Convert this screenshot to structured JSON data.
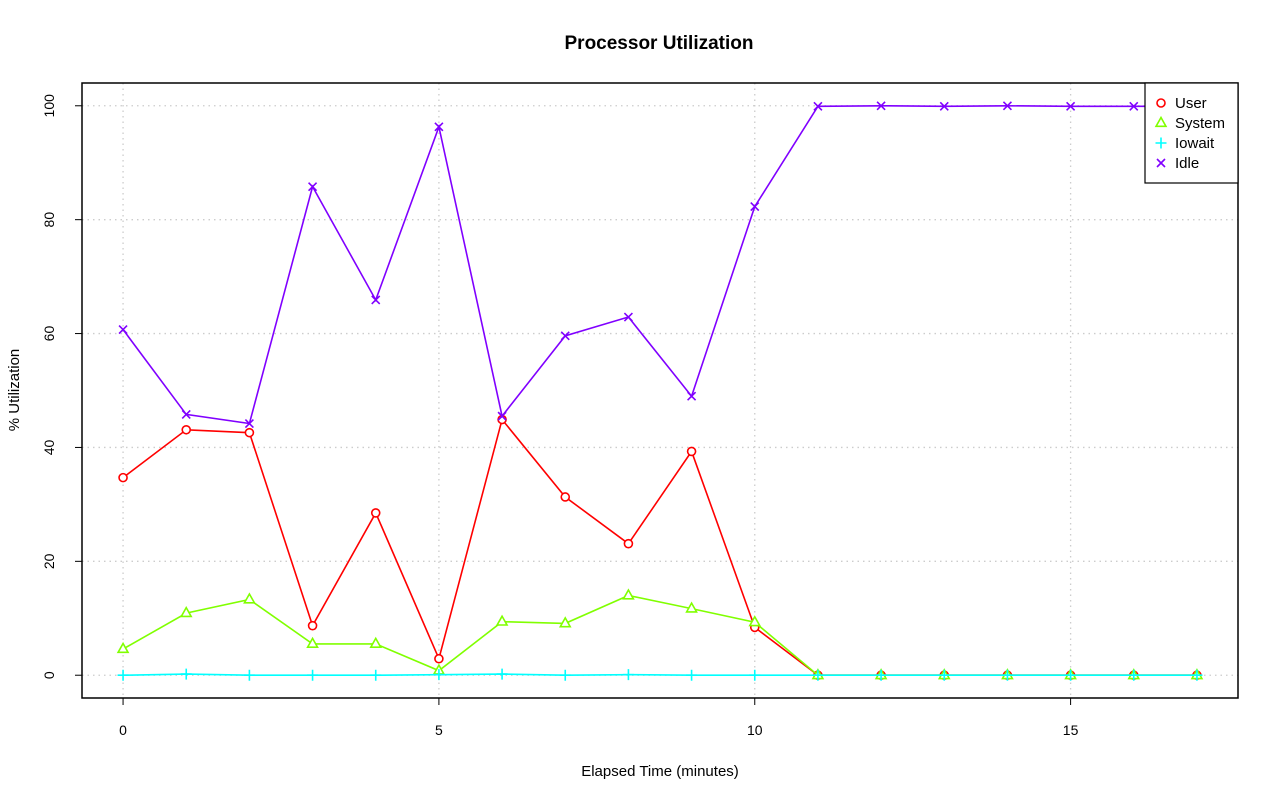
{
  "chart_data": {
    "type": "line",
    "title": "Processor Utilization",
    "xlabel": "Elapsed Time (minutes)",
    "ylabel": "% Utilization",
    "xlim": [
      -0.65,
      17.65
    ],
    "ylim": [
      -4,
      104
    ],
    "x_ticks": [
      0,
      5,
      10,
      15
    ],
    "y_ticks": [
      0,
      20,
      40,
      60,
      80,
      100
    ],
    "grid": true,
    "legend_position": "top-right",
    "x": [
      0,
      1,
      2,
      3,
      4,
      5,
      6,
      7,
      8,
      9,
      10,
      11,
      12,
      13,
      14,
      15,
      16,
      17
    ],
    "series": [
      {
        "name": "User",
        "color": "#ff0000",
        "marker": "circle",
        "values": [
          34.7,
          43.1,
          42.6,
          8.7,
          28.5,
          2.9,
          44.9,
          31.3,
          23.1,
          39.3,
          8.4,
          0,
          0,
          0,
          0,
          0,
          0,
          0
        ]
      },
      {
        "name": "System",
        "color": "#80ff00",
        "marker": "triangle",
        "values": [
          4.6,
          10.9,
          13.3,
          5.5,
          5.5,
          0.8,
          9.4,
          9.1,
          14.0,
          11.7,
          9.3,
          0,
          0,
          0,
          0,
          0,
          0,
          0
        ]
      },
      {
        "name": "Iowait",
        "color": "#00ffff",
        "marker": "plus",
        "values": [
          0.0,
          0.2,
          0.0,
          0.0,
          0.0,
          0.1,
          0.2,
          0.0,
          0.1,
          0.0,
          0.0,
          0,
          0,
          0,
          0,
          0,
          0,
          0
        ]
      },
      {
        "name": "Idle",
        "color": "#8000ff",
        "marker": "cross",
        "values": [
          60.7,
          45.8,
          44.2,
          85.8,
          65.9,
          96.3,
          45.5,
          59.6,
          62.9,
          49.0,
          82.3,
          99.9,
          100,
          99.9,
          100,
          99.9,
          99.9,
          99.9
        ]
      }
    ]
  }
}
